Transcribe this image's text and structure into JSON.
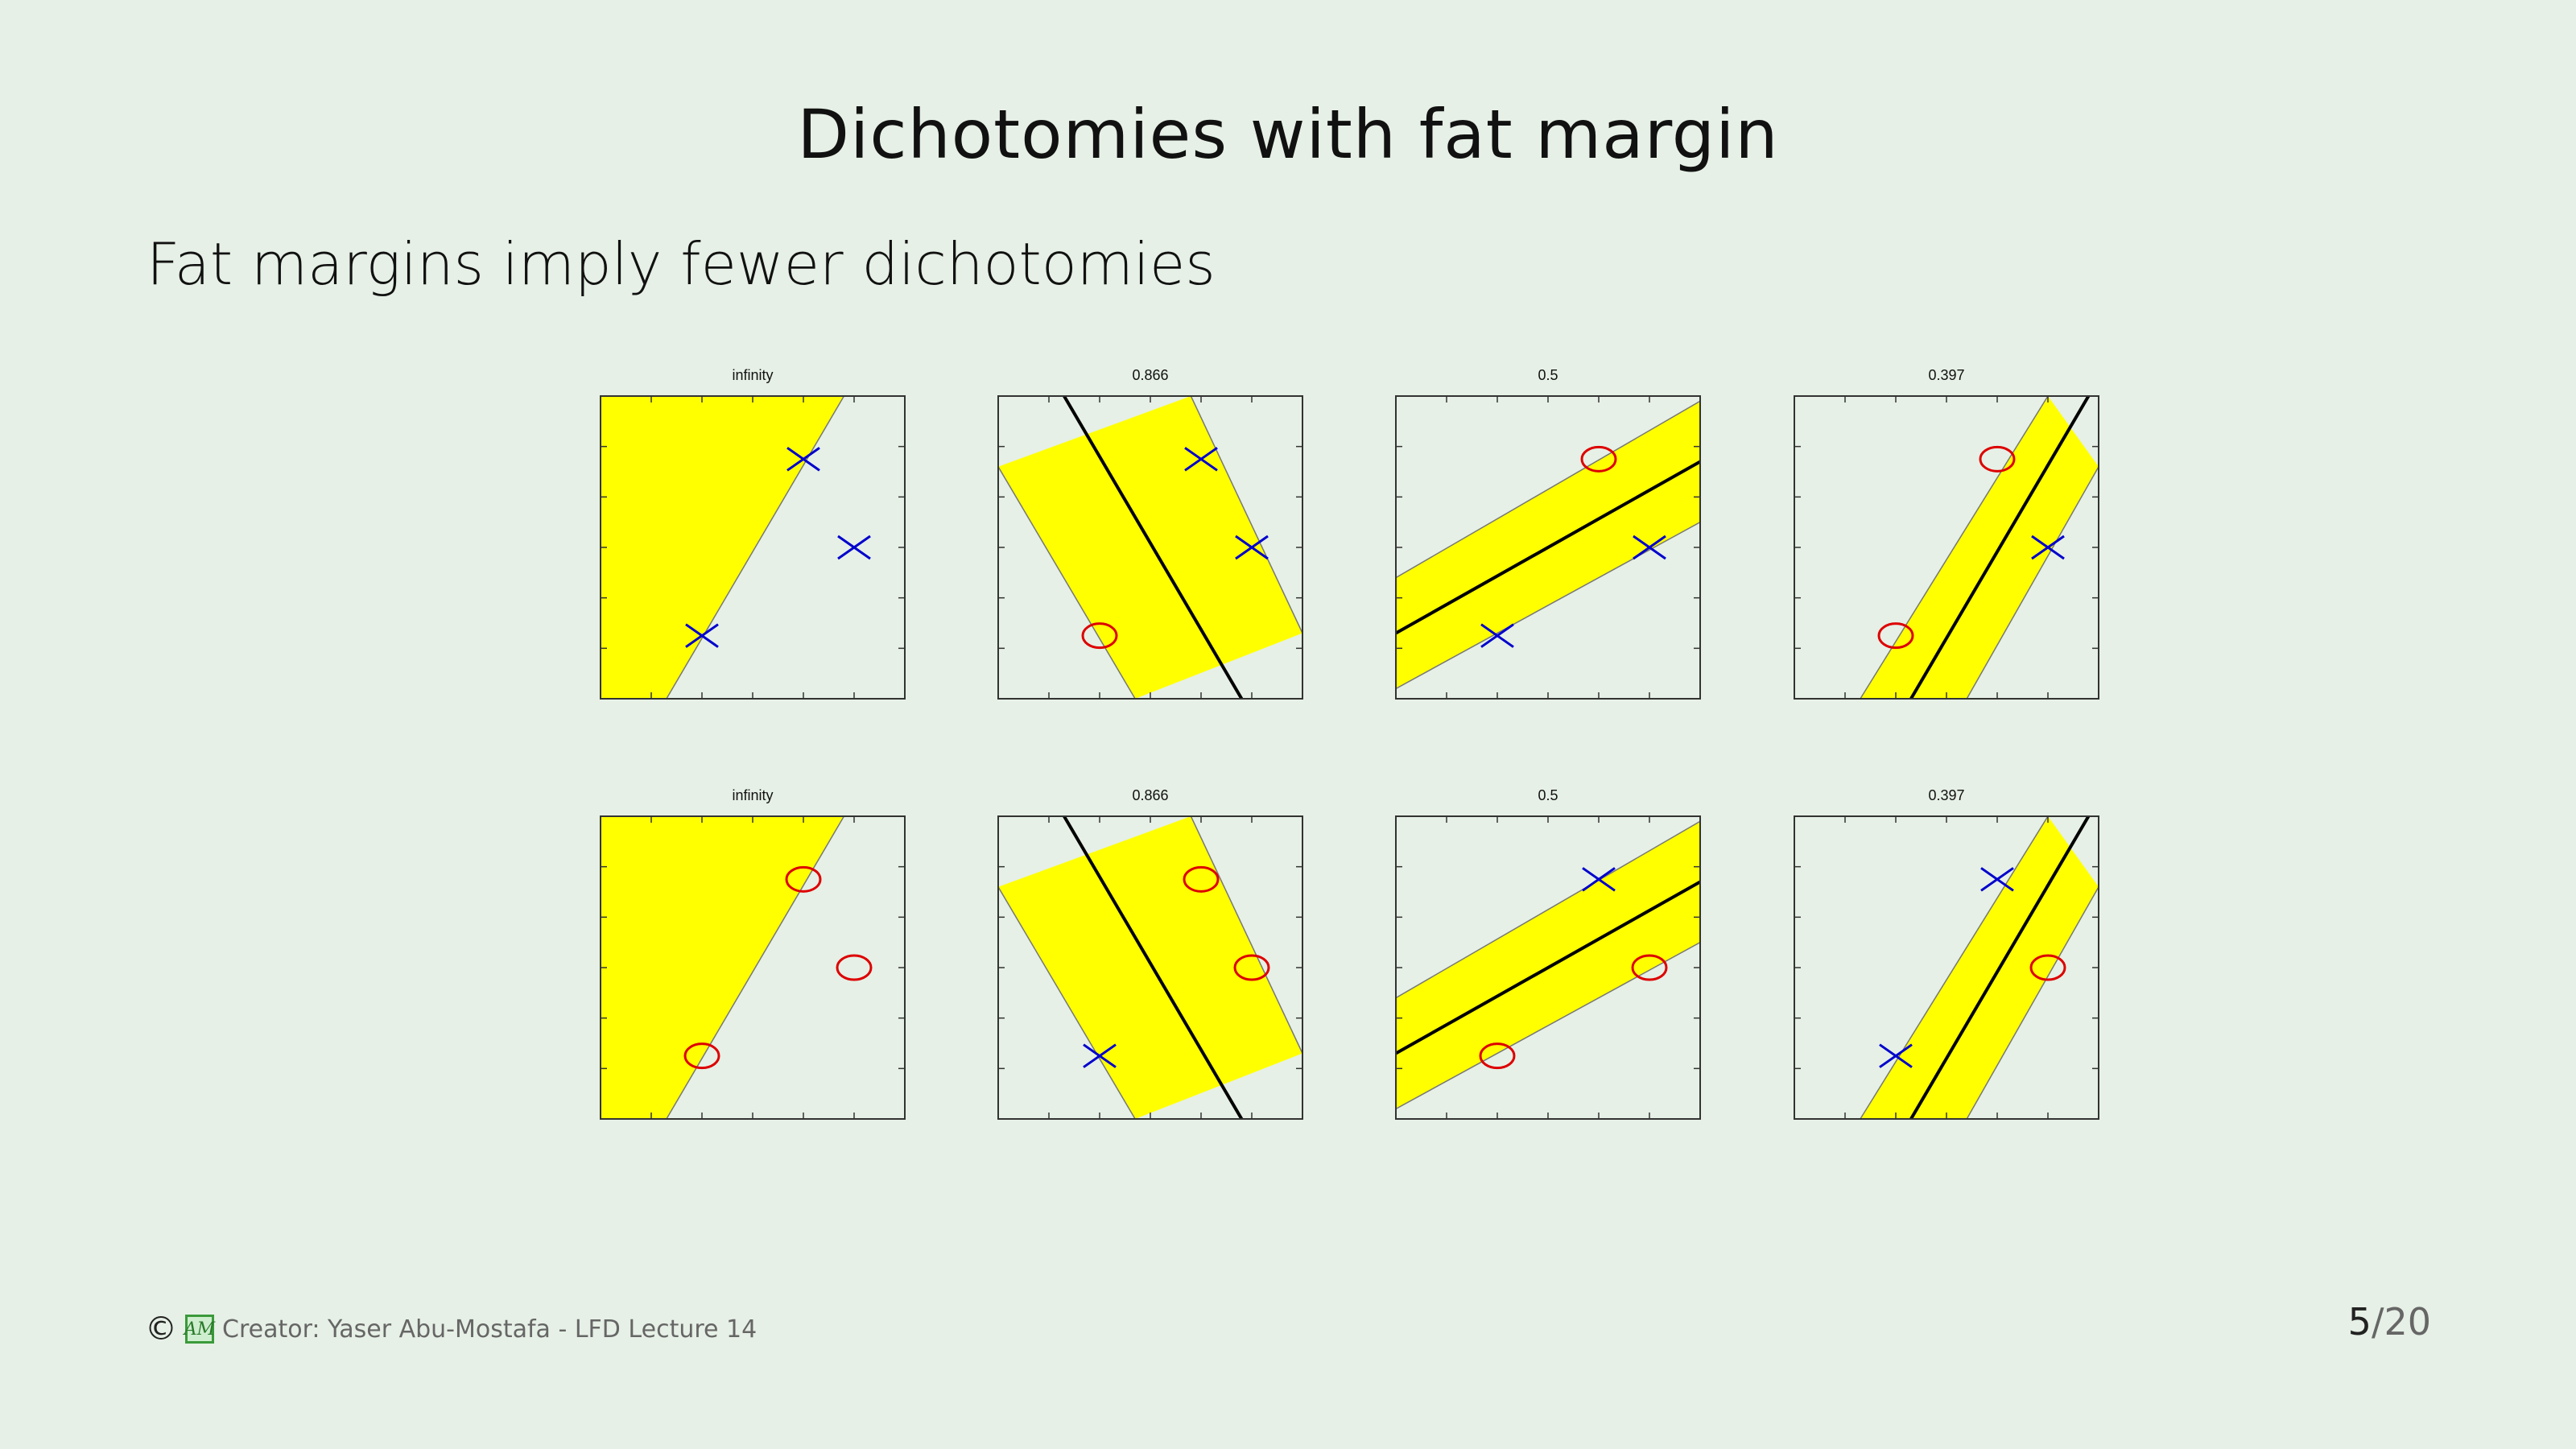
{
  "slide": {
    "title": "Dichotomies with fat margin",
    "subtitle": "Fat margins imply fewer dichotomies"
  },
  "footer": {
    "copyright_symbol": "©",
    "logo_text": "AM",
    "credit": "Creator: Yaser Abu-Mostafa - LFD Lecture 14",
    "page_current": "5",
    "page_separator": "/",
    "page_total": "20"
  },
  "colors": {
    "margin_fill": "#ffff00",
    "cross": "#0000cc",
    "circle": "#dd0000",
    "background": "#e6f0e6"
  },
  "chart_data": {
    "type": "scatter",
    "xlim": [
      0,
      6
    ],
    "ylim": [
      0,
      6
    ],
    "points": [
      [
        2,
        1.25
      ],
      [
        4,
        4.75
      ],
      [
        5,
        3
      ]
    ],
    "panels": [
      {
        "row": 0,
        "title": "infinity",
        "labels": [
          "x",
          "x",
          "x"
        ],
        "line": null,
        "region": [
          [
            0,
            0
          ],
          [
            1.3,
            0
          ],
          [
            4.8,
            6
          ],
          [
            0,
            6
          ]
        ]
      },
      {
        "row": 0,
        "title": "0.866",
        "labels": [
          "o",
          "x",
          "x"
        ],
        "line": [
          [
            1.3,
            6
          ],
          [
            4.8,
            0
          ]
        ],
        "band": [
          [
            [
              0,
              4.6
            ],
            [
              2.7,
              0
            ]
          ],
          [
            [
              3.8,
              6
            ],
            [
              6,
              1.3
            ]
          ]
        ]
      },
      {
        "row": 0,
        "title": "0.5",
        "labels": [
          "x",
          "o",
          "x"
        ],
        "line": [
          [
            0,
            1.3
          ],
          [
            6,
            4.7
          ]
        ],
        "band": [
          [
            [
              0,
              0.2
            ],
            [
              6,
              3.5
            ]
          ],
          [
            [
              0,
              2.4
            ],
            [
              6,
              5.9
            ]
          ]
        ]
      },
      {
        "row": 0,
        "title": "0.397",
        "labels": [
          "o",
          "o",
          "x"
        ],
        "line": [
          [
            2.3,
            0
          ],
          [
            5.8,
            6
          ]
        ],
        "band": [
          [
            [
              1.3,
              0
            ],
            [
              5,
              6
            ]
          ],
          [
            [
              3.4,
              0
            ],
            [
              6,
              4.6
            ]
          ]
        ]
      },
      {
        "row": 1,
        "title": "infinity",
        "labels": [
          "o",
          "o",
          "o"
        ],
        "line": null,
        "region": [
          [
            0,
            0
          ],
          [
            1.3,
            0
          ],
          [
            4.8,
            6
          ],
          [
            0,
            6
          ]
        ]
      },
      {
        "row": 1,
        "title": "0.866",
        "labels": [
          "x",
          "o",
          "o"
        ],
        "line": [
          [
            1.3,
            6
          ],
          [
            4.8,
            0
          ]
        ],
        "band": [
          [
            [
              0,
              4.6
            ],
            [
              2.7,
              0
            ]
          ],
          [
            [
              3.8,
              6
            ],
            [
              6,
              1.3
            ]
          ]
        ]
      },
      {
        "row": 1,
        "title": "0.5",
        "labels": [
          "o",
          "x",
          "o"
        ],
        "line": [
          [
            0,
            1.3
          ],
          [
            6,
            4.7
          ]
        ],
        "band": [
          [
            [
              0,
              0.2
            ],
            [
              6,
              3.5
            ]
          ],
          [
            [
              0,
              2.4
            ],
            [
              6,
              5.9
            ]
          ]
        ]
      },
      {
        "row": 1,
        "title": "0.397",
        "labels": [
          "x",
          "x",
          "o"
        ],
        "line": [
          [
            2.3,
            0
          ],
          [
            5.8,
            6
          ]
        ],
        "band": [
          [
            [
              1.3,
              0
            ],
            [
              5,
              6
            ]
          ],
          [
            [
              3.4,
              0
            ],
            [
              6,
              4.6
            ]
          ]
        ]
      }
    ]
  }
}
